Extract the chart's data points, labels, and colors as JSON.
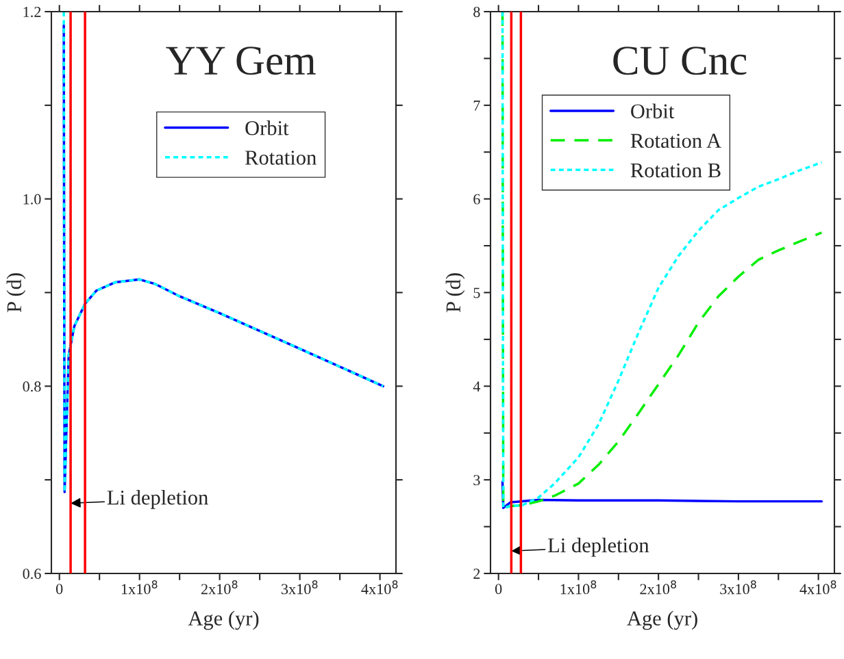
{
  "chart_data": [
    {
      "type": "line",
      "title": "YY Gem",
      "xlabel": "Age (yr)",
      "ylabel": "P (d)",
      "xlim": [
        -10000000,
        420000000
      ],
      "ylim": [
        0.6,
        1.2
      ],
      "xticks": [
        0,
        {
          "value": 50000000,
          "label": null
        },
        {
          "value": 100000000,
          "label": "1x10$^{8}$"
        },
        {
          "value": 150000000,
          "label": null
        },
        {
          "value": 200000000,
          "label": "2x10$^{8}$"
        },
        {
          "value": 250000000,
          "label": null
        },
        {
          "value": 300000000,
          "label": "3x10$^{8}$"
        },
        {
          "value": 350000000,
          "label": null
        },
        {
          "value": 400000000,
          "label": "4x10$^{8}$"
        }
      ],
      "yticks": [
        0.6,
        {
          "value": 0.7,
          "label": null
        },
        0.8,
        {
          "value": 0.9,
          "label": null
        },
        {
          "value": 1.0,
          "label": "1.0"
        },
        {
          "value": 1.1,
          "label": null
        },
        1.2
      ],
      "legend": "top",
      "grid": false,
      "x": [
        5500000,
        6000000,
        6500000,
        9000000,
        11600000,
        18600000,
        32000000,
        46000000,
        70000000,
        100000000,
        120000000,
        150000000,
        200000000,
        300000000,
        404000000
      ],
      "series": [
        {
          "name": "Orbit",
          "color": "#0000ff",
          "line_style": "solid",
          "values": [
            1.185,
            0.9,
            0.687,
            0.76,
            0.833,
            0.864,
            0.888,
            0.902,
            0.911,
            0.914,
            0.909,
            0.896,
            0.878,
            0.84,
            0.8
          ]
        },
        {
          "name": "Rotation",
          "color": "#00ffff",
          "line_style": "dotted",
          "values": [
            1.2,
            0.9,
            0.687,
            0.76,
            0.833,
            0.864,
            0.888,
            0.902,
            0.911,
            0.914,
            0.909,
            0.896,
            0.878,
            0.84,
            0.8
          ]
        }
      ],
      "ref_lines": [
        {
          "axis": "x",
          "value": 14000000,
          "color": "#ff0000"
        },
        {
          "axis": "x",
          "value": 32000000,
          "color": "#ff0000"
        }
      ],
      "annotations": [
        {
          "text": "Li depletion",
          "x": 14000000,
          "y": 0.675
        }
      ]
    },
    {
      "type": "line",
      "title": "CU Cnc",
      "xlabel": "Age (yr)",
      "ylabel": "P (d)",
      "xlim": [
        -10000000,
        420000000
      ],
      "ylim": [
        2,
        8
      ],
      "xticks": [
        0,
        {
          "value": 50000000,
          "label": null
        },
        {
          "value": 100000000,
          "label": "1x10$^{8}$"
        },
        {
          "value": 150000000,
          "label": null
        },
        {
          "value": 200000000,
          "label": "2x10$^{8}$"
        },
        {
          "value": 250000000,
          "label": null
        },
        {
          "value": 300000000,
          "label": "3x10$^{8}$"
        },
        {
          "value": 350000000,
          "label": null
        },
        {
          "value": 400000000,
          "label": "4x10$^{8}$"
        }
      ],
      "yticks": [
        2,
        {
          "value": 2.5,
          "label": null
        },
        3,
        {
          "value": 3.5,
          "label": null
        },
        4,
        {
          "value": 4.5,
          "label": null
        },
        5,
        {
          "value": 5.5,
          "label": null
        },
        6,
        {
          "value": 6.5,
          "label": null
        },
        7,
        {
          "value": 7.5,
          "label": null
        },
        8
      ],
      "legend": "top left",
      "grid": false,
      "series": [
        {
          "name": "Orbit",
          "color": "#0000ff",
          "line_style": "solid",
          "x": [
            5000000,
            6000000,
            15000000,
            50000000,
            100000000,
            200000000,
            300000000,
            404000000
          ],
          "values": [
            2.98,
            2.7,
            2.76,
            2.785,
            2.78,
            2.78,
            2.77,
            2.77
          ]
        },
        {
          "name": "Rotation A",
          "color": "#00ee00",
          "line_style": "dashed",
          "x": [
            5000000,
            5500000,
            6000000,
            15000000,
            30000000,
            50000000,
            70000000,
            100000000,
            125000000,
            150000000,
            175000000,
            200000000,
            225000000,
            250000000,
            275000000,
            300000000,
            325000000,
            350000000,
            375000000,
            404000000
          ],
          "values": [
            8,
            5,
            2.7,
            2.72,
            2.73,
            2.77,
            2.83,
            2.96,
            3.16,
            3.41,
            3.71,
            4.02,
            4.33,
            4.68,
            4.96,
            5.17,
            5.35,
            5.45,
            5.54,
            5.64
          ]
        },
        {
          "name": "Rotation B",
          "color": "#00ffff",
          "line_style": "dotted",
          "x": [
            5000000,
            5500000,
            6000000,
            15000000,
            30000000,
            50000000,
            70000000,
            100000000,
            125000000,
            150000000,
            175000000,
            200000000,
            225000000,
            250000000,
            275000000,
            300000000,
            325000000,
            350000000,
            375000000,
            404000000
          ],
          "values": [
            8,
            5,
            2.7,
            2.72,
            2.73,
            2.81,
            2.96,
            3.24,
            3.59,
            4.06,
            4.57,
            5.05,
            5.39,
            5.66,
            5.88,
            6.01,
            6.13,
            6.21,
            6.3,
            6.39
          ]
        }
      ],
      "ref_lines": [
        {
          "axis": "x",
          "value": 16000000,
          "color": "#ff0000"
        },
        {
          "axis": "x",
          "value": 28000000,
          "color": "#ff0000"
        }
      ],
      "annotations": [
        {
          "text": "Li depletion",
          "x": 16000000,
          "y": 2.24
        }
      ]
    }
  ]
}
